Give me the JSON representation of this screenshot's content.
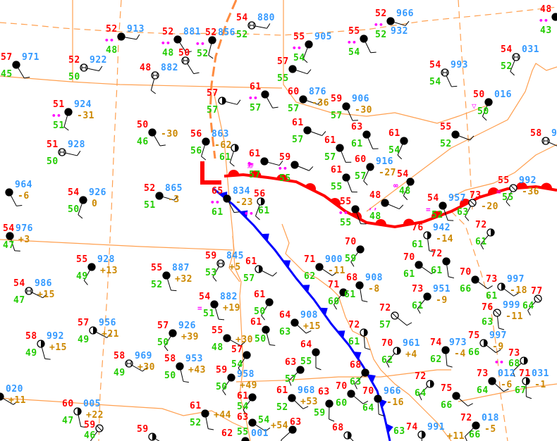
{
  "colors": {
    "temperature": "#ff0000",
    "dewpoint": "#22cc00",
    "pressure": "#3399ff",
    "tendency": "#cc8800",
    "weather": "#ff00ff",
    "warm_front": "#ff0000",
    "cold_front": "#0000ff",
    "trough": "#ff8c40",
    "borders": "#ffa050"
  },
  "low_label": "L",
  "stations": [
    {
      "t": "52",
      "p": "913",
      "td": "48",
      "wx": "••",
      "sky": "filled"
    },
    {
      "t": "52",
      "p": "881",
      "td": "48",
      "wx": "••",
      "sky": "filled"
    },
    {
      "t": "52",
      "p": "856",
      "td": "52",
      "wx": "••",
      "sky": "filled"
    },
    {
      "t": "54",
      "p": "880",
      "td": "52",
      "sky": "obscured"
    },
    {
      "t": "50",
      "sky": "obscured"
    },
    {
      "t": "48",
      "p": "882",
      "sky": "obscured"
    },
    {
      "t": "52",
      "p": "922",
      "td": "50",
      "sky": "obscured"
    },
    {
      "t": "57",
      "p": "971",
      "td": "45",
      "sky": "filled"
    },
    {
      "t": "51",
      "p": "924",
      "td": "51",
      "tend": "-31",
      "wx": "••",
      "sky": "filled"
    },
    {
      "t": "51",
      "p": "928",
      "td": "50",
      "sky": "obscured"
    },
    {
      "t": "50",
      "td": "46",
      "tend": "-30",
      "sky": "filled"
    },
    {
      "t": "56",
      "p": "863",
      "td": "56",
      "tend": "-62",
      "sky": "filled"
    },
    {
      "t": "57",
      "td": "57",
      "sky": "half"
    },
    {
      "t": "61",
      "td": "57",
      "wx": "••",
      "sky": "filled"
    },
    {
      "td": "61",
      "sky": "half"
    },
    {
      "t": "61",
      "td": "57",
      "wx": "⛈",
      "sky": "filled"
    },
    {
      "p": "964",
      "tend": "-6",
      "sky": "filled"
    },
    {
      "t": "54",
      "p": "926",
      "td": "50",
      "tend": "0",
      "sky": "filled"
    },
    {
      "t": "52",
      "p": "865",
      "td": "51",
      "tend": "-3",
      "sky": "filled"
    },
    {
      "t": "65",
      "p": "834",
      "td": "61",
      "tend": "-23",
      "wx": "••",
      "sky": "filled"
    },
    {
      "t": "56",
      "td": "61",
      "wx": "••",
      "sky": "half"
    },
    {
      "t": "52",
      "p": "966",
      "td": "52",
      "wx": "••",
      "sky": "filled"
    },
    {
      "t": "55",
      "p": "932",
      "td": "54",
      "wx": "••",
      "sky": "filled"
    },
    {
      "t": "55",
      "p": "905",
      "td": "54",
      "wx": "••",
      "sky": "filled"
    },
    {
      "t": "57",
      "td": "55",
      "sky": "filled"
    },
    {
      "t": "54",
      "p": "993",
      "td": "54",
      "sky": "obscured"
    },
    {
      "t": "54",
      "p": "031",
      "td": "52",
      "sky": "obscured"
    },
    {
      "t": "60",
      "p": "876",
      "td": "57",
      "tend": "-36",
      "sky": "filled"
    },
    {
      "t": "59",
      "p": "906",
      "td": "57",
      "tend": "-30",
      "sky": "filled"
    },
    {
      "t": "50",
      "p": "016",
      "td": "50",
      "wx": "▽",
      "sky": "filled"
    },
    {
      "t": "61",
      "td": "57",
      "sky": "filled"
    },
    {
      "t": "63",
      "td": "61",
      "sky": "filled"
    },
    {
      "t": "61",
      "td": "54",
      "sky": "filled"
    },
    {
      "t": "55",
      "td": "52",
      "sky": "filled"
    },
    {
      "t": "61",
      "td": "57",
      "sky": "filled"
    },
    {
      "t": "60",
      "p": "916",
      "td": "57",
      "tend": "-27",
      "sky": "filled"
    },
    {
      "t": "59",
      "td": "55",
      "wx": "••",
      "sky": "filled"
    },
    {
      "t": "61",
      "td": "55",
      "sky": "filled"
    },
    {
      "t": "54",
      "td": "48",
      "wx": "∞",
      "sky": "filled"
    },
    {
      "t": "48",
      "td": "48",
      "wx": ",,",
      "sky": "filled"
    },
    {
      "t": "55",
      "td": "55",
      "wx": "••",
      "sky": "filled"
    },
    {
      "t": "55",
      "p": "992",
      "td": "55",
      "tend": "-36",
      "wx": "=",
      "sky": "clear"
    },
    {
      "t": "58",
      "p": "9",
      "sky": "obscured"
    },
    {
      "t": "54",
      "p": "957",
      "td": "52",
      "wx": "=",
      "sky": "filled"
    },
    {
      "t": "73",
      "td": "63",
      "tend": "-20",
      "sky": "clear"
    },
    {
      "t": "48",
      "td": "43",
      "wx": "••",
      "sky": "filled"
    },
    {
      "t": "54",
      "p": "976",
      "td": "47",
      "tend": "+3",
      "sky": "filled"
    },
    {
      "t": "55",
      "p": "928",
      "td": "49",
      "tend": "+13",
      "sky": "filled"
    },
    {
      "t": "54",
      "p": "986",
      "td": "47",
      "tend": "+15",
      "sky": "obscured"
    },
    {
      "t": "55",
      "p": "887",
      "td": "52",
      "tend": "+32",
      "sky": "filled"
    },
    {
      "t": "59",
      "p": "845",
      "td": "53",
      "tend": "+5",
      "sky": "obscured"
    },
    {
      "t": "61",
      "td": "57",
      "sky": "half"
    },
    {
      "t": "54",
      "p": "882",
      "td": "51",
      "tend": "+19",
      "wx": "=",
      "sky": "filled"
    },
    {
      "t": "61",
      "td": "50",
      "sky": "filled"
    },
    {
      "t": "57",
      "p": "956",
      "td": "49",
      "tend": "+21",
      "sky": "half"
    },
    {
      "t": "58",
      "p": "992",
      "td": "49",
      "tend": "+15",
      "sky": "half"
    },
    {
      "t": "57",
      "p": "926",
      "td": "50",
      "tend": "+39",
      "sky": "filled"
    },
    {
      "t": "55",
      "td": "48",
      "tend": "+30",
      "sky": "filled"
    },
    {
      "t": "61",
      "td": "50",
      "sky": "filled"
    },
    {
      "t": "57",
      "td": "54",
      "sky": "filled"
    },
    {
      "t": "58",
      "p": "969",
      "td": "49",
      "tend": "+30",
      "sky": "obscured"
    },
    {
      "t": "58",
      "p": "953",
      "td": "50",
      "tend": "+43",
      "sky": "filled"
    },
    {
      "t": "59",
      "p": "958",
      "td": "50",
      "tend": "+49",
      "sky": "filled"
    },
    {
      "p": "020",
      "tend": "+11",
      "sky": "half"
    },
    {
      "t": "60",
      "p": "005",
      "td": "47",
      "tend": "+22",
      "sky": "half"
    },
    {
      "t": "59",
      "td": "46",
      "sky": "clear"
    },
    {
      "t": "59",
      "sky": "half"
    },
    {
      "t": "61",
      "td": "52",
      "tend": "+44",
      "sky": "filled"
    },
    {
      "t": "61",
      "td": "54",
      "sky": "filled"
    },
    {
      "t": "63",
      "td": "55",
      "sky": "filled"
    },
    {
      "t": "62",
      "p": "001",
      "tend": "+54",
      "sky": "filled"
    },
    {
      "t": "70",
      "td": "59",
      "sky": "filled"
    },
    {
      "t": "71",
      "p": "900",
      "td": "62",
      "tend": "-11",
      "sky": "filled"
    },
    {
      "t": "68",
      "p": "908",
      "td": "61",
      "tend": "-8",
      "sky": "filled"
    },
    {
      "t": "71",
      "td": "60",
      "sky": "filled"
    },
    {
      "t": "70",
      "td": "61",
      "sky": "filled"
    },
    {
      "t": "72",
      "td": "61",
      "sky": "filled"
    },
    {
      "t": "73",
      "p": "951",
      "td": "61",
      "tend": "-9",
      "sky": "filled"
    },
    {
      "t": "70",
      "td": "66",
      "sky": "filled"
    },
    {
      "t": "76",
      "p": "942",
      "td": "61",
      "tend": "-14",
      "sky": "half"
    },
    {
      "t": "72",
      "td": "61",
      "sky": "half"
    },
    {
      "t": "73",
      "p": "997",
      "td": "61",
      "tend": "-18",
      "sky": "half"
    },
    {
      "t": "76",
      "p": "999",
      "td": "63",
      "tend": "-11",
      "sky": "clear"
    },
    {
      "t": "77",
      "td": "64",
      "sky": "clear"
    },
    {
      "t": "75",
      "p": "997",
      "td": "66",
      "tend": "-9",
      "sky": "half"
    },
    {
      "t": "74",
      "p": "973",
      "td": "62",
      "tend": "-4",
      "sky": "filled"
    },
    {
      "t": "70",
      "p": "961",
      "td": "62",
      "tend": "+4",
      "sky": "half"
    },
    {
      "t": "72",
      "td": "57",
      "sky": "clear"
    },
    {
      "t": "72",
      "td": "61",
      "sky": "half"
    },
    {
      "t": "68",
      "td": "63",
      "sky": "filled"
    },
    {
      "t": "70",
      "td": "60",
      "sky": "filled"
    },
    {
      "t": "70",
      "p": "966",
      "td": "64",
      "tend": "-16",
      "sky": "filled"
    },
    {
      "t": "72",
      "td": "64",
      "sky": "half"
    },
    {
      "t": "75",
      "td": "66",
      "sky": "filled"
    },
    {
      "t": "74",
      "p": "991",
      "td": "63",
      "tend": "+11",
      "sky": "half"
    },
    {
      "t": "72",
      "p": "018",
      "td": "66",
      "tend": "-5",
      "sky": "filled"
    },
    {
      "t": "73",
      "p": "012",
      "td": "64",
      "tend": "-6",
      "sky": "filled"
    },
    {
      "t": "71",
      "p": "031",
      "td": "67",
      "tend": "-1",
      "sky": "half"
    },
    {
      "t": "73",
      "td": "68",
      "wx": "••",
      "sky": "half"
    },
    {
      "t": "64",
      "p": "908",
      "td": "63",
      "tend": "+15",
      "sky": "filled"
    },
    {
      "t": "64",
      "td": "55",
      "sky": "filled"
    },
    {
      "t": "63",
      "td": "57",
      "sky": "filled"
    },
    {
      "t": "61",
      "p": "968",
      "td": "52",
      "tend": "+53",
      "sky": "filled"
    },
    {
      "t": "63",
      "td": "59",
      "sky": "filled"
    },
    {
      "t": "63",
      "td": "54",
      "sky": "filled"
    },
    {
      "t": "68",
      "sky": "half"
    }
  ]
}
